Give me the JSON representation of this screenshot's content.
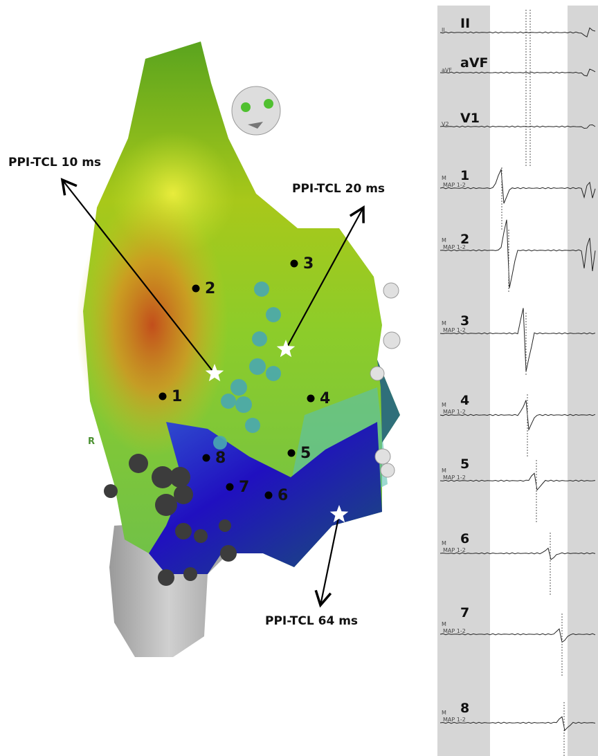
{
  "map": {
    "annotations": [
      "PPI-TCL 10 ms",
      "PPI-TCL 20 ms",
      "PPI-TCL 64 ms"
    ],
    "sites": [
      "1",
      "2",
      "3",
      "4",
      "5",
      "6",
      "7",
      "8"
    ],
    "orientation": "R"
  },
  "traces": [
    {
      "lead": "II",
      "tag": "II"
    },
    {
      "lead": "aVF",
      "tag": "aVF"
    },
    {
      "lead": "V1",
      "tag": "V2"
    },
    {
      "lead": "1",
      "tag": "M",
      "channel": "MAP 1-2"
    },
    {
      "lead": "2",
      "tag": "M",
      "channel": "MAP 1-2"
    },
    {
      "lead": "3",
      "tag": "M",
      "channel": "MAP 1-2"
    },
    {
      "lead": "4",
      "tag": "M",
      "channel": "MAP 1-2"
    },
    {
      "lead": "5",
      "tag": "M",
      "channel": "MAP 1-2"
    },
    {
      "lead": "6",
      "tag": "M",
      "channel": "MAP 1-2"
    },
    {
      "lead": "7",
      "tag": "M",
      "channel": "MAP 1-2"
    },
    {
      "lead": "8",
      "tag": "M",
      "channel": "MAP 1-2"
    }
  ]
}
